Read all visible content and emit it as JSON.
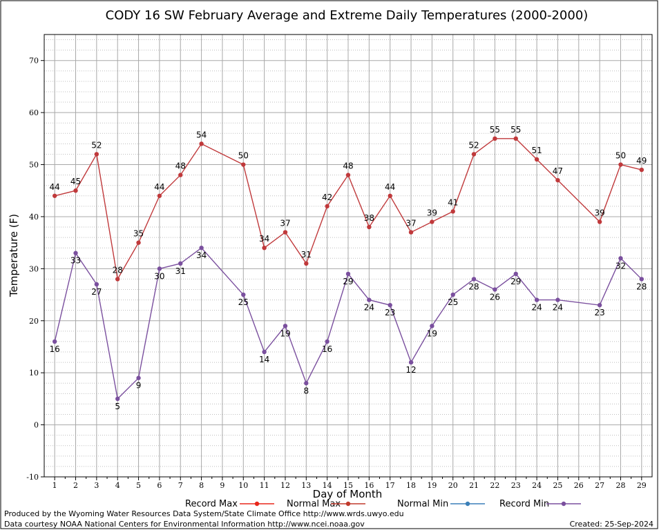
{
  "chart_data": {
    "type": "line",
    "title": "CODY 16 SW February Average and Extreme Daily Temperatures (2000-2000)",
    "xlabel": "Day of Month",
    "ylabel": "Temperature (F)",
    "xlim": [
      0.5,
      29.5
    ],
    "ylim": [
      -10,
      75
    ],
    "y_ticks": [
      -10,
      0,
      10,
      20,
      30,
      40,
      50,
      60,
      70
    ],
    "y_tick_labels": [
      "-10",
      "0",
      "10",
      "20",
      "30",
      "40",
      "50",
      "60",
      "70"
    ],
    "x_ticks": [
      1,
      2,
      3,
      4,
      5,
      6,
      7,
      8,
      9,
      10,
      11,
      12,
      13,
      14,
      15,
      16,
      17,
      18,
      19,
      20,
      21,
      22,
      23,
      24,
      25,
      26,
      27,
      28,
      29
    ],
    "x_tick_labels": [
      "1",
      "2",
      "3",
      "4",
      "5",
      "6",
      "7",
      "8",
      "9",
      "10",
      "11",
      "12",
      "13",
      "14",
      "15",
      "16",
      "17",
      "18",
      "19",
      "20",
      "21",
      "22",
      "23",
      "24",
      "25",
      "26",
      "27",
      "28",
      "29"
    ],
    "grid": true,
    "legend_position": "bottom",
    "legend": [
      {
        "label": "Record Max",
        "color": "#e8261a"
      },
      {
        "label": "Normal Max",
        "color": "#c0392b"
      },
      {
        "label": "Normal Min",
        "color": "#3a7fb8"
      },
      {
        "label": "Record Min",
        "color": "#7a4f9e"
      }
    ],
    "series": [
      {
        "color": "#c0393b",
        "points": [
          {
            "x": 1,
            "y": 44
          },
          {
            "x": 2,
            "y": 45
          },
          {
            "x": 3,
            "y": 52
          },
          {
            "x": 4,
            "y": 28
          },
          {
            "x": 5,
            "y": 35
          },
          {
            "x": 6,
            "y": 44
          },
          {
            "x": 7,
            "y": 48
          },
          {
            "x": 8,
            "y": 54
          },
          {
            "x": 10,
            "y": 50
          },
          {
            "x": 11,
            "y": 34
          },
          {
            "x": 12,
            "y": 37
          },
          {
            "x": 13,
            "y": 31
          },
          {
            "x": 14,
            "y": 42
          },
          {
            "x": 15,
            "y": 48
          },
          {
            "x": 16,
            "y": 38
          },
          {
            "x": 17,
            "y": 44
          },
          {
            "x": 18,
            "y": 37
          },
          {
            "x": 19,
            "y": 39
          },
          {
            "x": 20,
            "y": 41
          },
          {
            "x": 21,
            "y": 52
          },
          {
            "x": 22,
            "y": 55
          },
          {
            "x": 23,
            "y": 55
          },
          {
            "x": 24,
            "y": 51
          },
          {
            "x": 25,
            "y": 47
          },
          {
            "x": 27,
            "y": 39
          },
          {
            "x": 28,
            "y": 50
          },
          {
            "x": 29,
            "y": 49
          }
        ],
        "label_position": "above"
      },
      {
        "color": "#7a4f9e",
        "points": [
          {
            "x": 1,
            "y": 16
          },
          {
            "x": 2,
            "y": 33
          },
          {
            "x": 3,
            "y": 27
          },
          {
            "x": 4,
            "y": 5
          },
          {
            "x": 5,
            "y": 9
          },
          {
            "x": 6,
            "y": 30
          },
          {
            "x": 7,
            "y": 31
          },
          {
            "x": 8,
            "y": 34
          },
          {
            "x": 10,
            "y": 25
          },
          {
            "x": 11,
            "y": 14
          },
          {
            "x": 12,
            "y": 19
          },
          {
            "x": 13,
            "y": 8
          },
          {
            "x": 14,
            "y": 16
          },
          {
            "x": 15,
            "y": 29
          },
          {
            "x": 16,
            "y": 24
          },
          {
            "x": 17,
            "y": 23
          },
          {
            "x": 18,
            "y": 12
          },
          {
            "x": 19,
            "y": 19
          },
          {
            "x": 20,
            "y": 25
          },
          {
            "x": 21,
            "y": 28
          },
          {
            "x": 22,
            "y": 26
          },
          {
            "x": 23,
            "y": 29
          },
          {
            "x": 24,
            "y": 24
          },
          {
            "x": 25,
            "y": 24
          },
          {
            "x": 27,
            "y": 23
          },
          {
            "x": 28,
            "y": 32
          },
          {
            "x": 29,
            "y": 28
          }
        ],
        "label_position": "below"
      }
    ]
  },
  "footer": {
    "line1": "Produced by the Wyoming Water Resources Data System/State Climate Office http://www.wrds.uwyo.edu",
    "line2": "Data courtesy NOAA National Centers for Environmental Information http://www.ncei.noaa.gov",
    "created": "Created:  25-Sep-2024"
  }
}
